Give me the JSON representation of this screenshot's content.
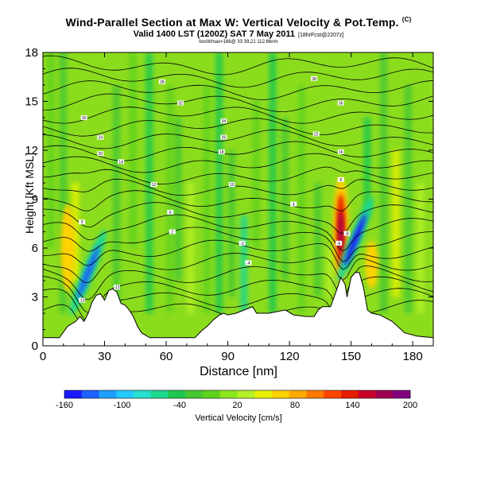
{
  "header": {
    "title": "Wind-Parallel Section at Max W: Vertical Velocity & Pot.Temp.",
    "title_tag": "(C)",
    "subtitle": "Valid 1400 LST (1200Z) SAT 7 May 2011",
    "subtitle_small": "[18hrFcst@2207z]",
    "subtitle2": "boxWmax=166@ 33 39,21 112.66nm"
  },
  "chart_data": {
    "type": "heatmap",
    "title": "Wind-Parallel Section at Max W: Vertical Velocity & Pot.Temp.",
    "xlabel": "Distance [nm]",
    "ylabel": "Height [Kft MSL]",
    "xlim": [
      0,
      190
    ],
    "ylim": [
      0,
      18
    ],
    "xticks": [
      0,
      30,
      60,
      90,
      120,
      150,
      180
    ],
    "yticks": [
      0,
      3,
      6,
      9,
      12,
      15,
      18
    ],
    "colorbar": {
      "label": "Vertical Velocity [cm/s]",
      "min": -160,
      "max": 200,
      "tick_labels": [
        -160,
        -100,
        -40,
        20,
        80,
        140,
        200
      ],
      "colors": [
        "#1a1aff",
        "#1e60ff",
        "#1ea0ff",
        "#23c8ff",
        "#26e0d0",
        "#1ed890",
        "#1ec850",
        "#46c832",
        "#5fd21e",
        "#8ce61e",
        "#b4f028",
        "#e6f000",
        "#ffd200",
        "#ffaa00",
        "#ff7800",
        "#ff4600",
        "#e61e00",
        "#c80028",
        "#a00050",
        "#800080"
      ]
    },
    "terrain": [
      [
        0,
        0.5
      ],
      [
        8,
        0.5
      ],
      [
        12,
        1.2
      ],
      [
        16,
        1.5
      ],
      [
        18,
        1.8
      ],
      [
        20,
        1.5
      ],
      [
        22,
        2.0
      ],
      [
        24,
        2.7
      ],
      [
        26,
        3.1
      ],
      [
        28,
        3.2
      ],
      [
        30,
        2.8
      ],
      [
        32,
        3.4
      ],
      [
        34,
        3.5
      ],
      [
        36,
        3.3
      ],
      [
        38,
        2.6
      ],
      [
        40,
        2.5
      ],
      [
        42,
        2.2
      ],
      [
        44,
        1.8
      ],
      [
        46,
        1.2
      ],
      [
        48,
        0.8
      ],
      [
        52,
        0.5
      ],
      [
        74,
        0.5
      ],
      [
        77,
        0.9
      ],
      [
        80,
        1.2
      ],
      [
        83,
        1.6
      ],
      [
        86,
        1.9
      ],
      [
        88,
        2.0
      ],
      [
        90,
        1.9
      ],
      [
        94,
        2.0
      ],
      [
        98,
        2.2
      ],
      [
        102,
        2.4
      ],
      [
        104,
        2.0
      ],
      [
        110,
        2.0
      ],
      [
        118,
        2.2
      ],
      [
        122,
        1.9
      ],
      [
        128,
        1.8
      ],
      [
        132,
        1.8
      ],
      [
        134,
        2.2
      ],
      [
        136,
        2.4
      ],
      [
        140,
        2.4
      ],
      [
        142,
        3.1
      ],
      [
        144,
        3.8
      ],
      [
        145,
        4.2
      ],
      [
        147,
        3.8
      ],
      [
        148,
        3.0
      ],
      [
        150,
        4.2
      ],
      [
        152,
        4.5
      ],
      [
        154,
        4.5
      ],
      [
        156,
        3.6
      ],
      [
        158,
        2.2
      ],
      [
        160,
        2.0
      ],
      [
        164,
        1.9
      ],
      [
        170,
        1.5
      ],
      [
        176,
        0.8
      ],
      [
        182,
        0.6
      ],
      [
        190,
        0.5
      ]
    ],
    "updraft_max": [
      {
        "x": 145,
        "y": 7.0,
        "w": 180
      }
    ],
    "downdraft_min": [
      {
        "x": 22,
        "y": 4.5,
        "w": -140
      },
      {
        "x": 152,
        "y": 6.5,
        "w": -150
      }
    ],
    "isentrope_labels": [
      {
        "x": 58,
        "y": 16.2,
        "text": "28"
      },
      {
        "x": 132,
        "y": 16.4,
        "text": "38"
      },
      {
        "x": 20,
        "y": 14.0,
        "text": "30"
      },
      {
        "x": 67,
        "y": 14.9,
        "text": "32"
      },
      {
        "x": 88,
        "y": 13.8,
        "text": "34"
      },
      {
        "x": 145,
        "y": 14.9,
        "text": "36"
      },
      {
        "x": 28,
        "y": 12.8,
        "text": "24"
      },
      {
        "x": 88,
        "y": 12.8,
        "text": "26"
      },
      {
        "x": 133,
        "y": 13.0,
        "text": "22"
      },
      {
        "x": 28,
        "y": 11.8,
        "text": "20"
      },
      {
        "x": 87,
        "y": 11.9,
        "text": "18"
      },
      {
        "x": 145,
        "y": 11.9,
        "text": "16"
      },
      {
        "x": 38,
        "y": 11.3,
        "text": "14"
      },
      {
        "x": 54,
        "y": 9.9,
        "text": "12"
      },
      {
        "x": 92,
        "y": 9.9,
        "text": "10"
      },
      {
        "x": 145,
        "y": 10.2,
        "text": "8"
      },
      {
        "x": 62,
        "y": 8.2,
        "text": "6"
      },
      {
        "x": 122,
        "y": 8.7,
        "text": "4"
      },
      {
        "x": 63,
        "y": 7.0,
        "text": "2"
      },
      {
        "x": 19,
        "y": 7.6,
        "text": "0"
      },
      {
        "x": 97,
        "y": 6.3,
        "text": "-2"
      },
      {
        "x": 100,
        "y": 5.1,
        "text": "-4"
      },
      {
        "x": 144,
        "y": 6.3,
        "text": "-6"
      },
      {
        "x": 148,
        "y": 6.9,
        "text": "-8"
      },
      {
        "x": 19,
        "y": 2.8,
        "text": "-10"
      },
      {
        "x": 36,
        "y": 3.6,
        "text": "-12"
      }
    ]
  }
}
